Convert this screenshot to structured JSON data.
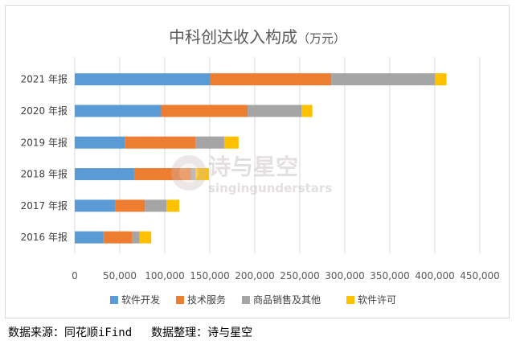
{
  "chart_data": {
    "type": "bar",
    "orientation": "horizontal",
    "stacked": true,
    "title": "中科创达收入构成",
    "title_unit": "（万元）",
    "categories": [
      "2016 年报",
      "2017 年报",
      "2018 年报",
      "2019 年报",
      "2020 年报",
      "2021 年报"
    ],
    "series": [
      {
        "name": "软件开发",
        "color": "#5B9BD5",
        "values": [
          32000,
          45000,
          66000,
          56000,
          96000,
          150000
        ]
      },
      {
        "name": "技术服务",
        "color": "#ED7D31",
        "values": [
          32000,
          33000,
          63000,
          78000,
          96000,
          135000
        ]
      },
      {
        "name": "商品销售及其他",
        "color": "#A5A5A5",
        "values": [
          8000,
          24000,
          5000,
          32000,
          60000,
          115000
        ]
      },
      {
        "name": "软件许可",
        "color": "#FFC000",
        "values": [
          13000,
          14000,
          15000,
          16000,
          12000,
          13000
        ]
      }
    ],
    "xlim": [
      0,
      450000
    ],
    "xticks": [
      "0",
      "50,000",
      "100,000",
      "150,000",
      "200,000",
      "250,000",
      "300,000",
      "350,000",
      "400,000",
      "450,000"
    ],
    "grid": true,
    "legend": "bottom"
  },
  "watermark": {
    "line1": "诗与星空",
    "line2": "singingunderstars"
  },
  "footer": {
    "source": "数据来源：同花顺iFind",
    "compiled": "数据整理：诗与星空"
  }
}
